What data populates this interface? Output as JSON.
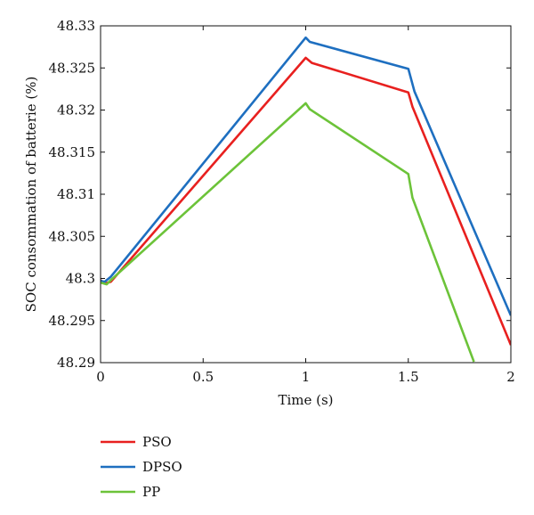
{
  "chart_data": {
    "type": "line",
    "title": "",
    "xlabel": "Time (s)",
    "ylabel": "SOC consommation of batterie (%)",
    "xlim": [
      0,
      2
    ],
    "ylim": [
      48.29,
      48.33
    ],
    "xticks": [
      0,
      0.5,
      1,
      1.5,
      2
    ],
    "xtick_labels": [
      "0",
      "0.5",
      "1",
      "1.5",
      "2"
    ],
    "yticks": [
      48.29,
      48.295,
      48.3,
      48.305,
      48.31,
      48.315,
      48.32,
      48.325,
      48.33
    ],
    "ytick_labels": [
      "48.29",
      "48.295",
      "48.3",
      "48.305",
      "48.31",
      "48.315",
      "48.32",
      "48.325",
      "48.33"
    ],
    "grid": false,
    "legend_position": "below-left",
    "series": [
      {
        "name": "PSO",
        "color": "#e8201f",
        "x": [
          0,
          0.02,
          0.05,
          1.0,
          1.03,
          1.5,
          1.52,
          2.0
        ],
        "y": [
          48.2998,
          48.2994,
          48.2996,
          48.3262,
          48.3256,
          48.3221,
          48.3204,
          48.2921
        ]
      },
      {
        "name": "DPSO",
        "color": "#1e6fc0",
        "x": [
          0,
          0.02,
          0.05,
          1.0,
          1.02,
          1.5,
          1.53,
          2.0
        ],
        "y": [
          48.2997,
          48.2996,
          48.3002,
          48.3286,
          48.3281,
          48.3249,
          48.3222,
          48.2956
        ]
      },
      {
        "name": "PP",
        "color": "#6cc339",
        "x": [
          0,
          0.03,
          0.05,
          1.0,
          1.02,
          1.5,
          1.52,
          1.82
        ],
        "y": [
          48.2995,
          48.2993,
          48.2998,
          48.3208,
          48.3201,
          48.3124,
          48.3096,
          48.2901
        ]
      }
    ]
  }
}
